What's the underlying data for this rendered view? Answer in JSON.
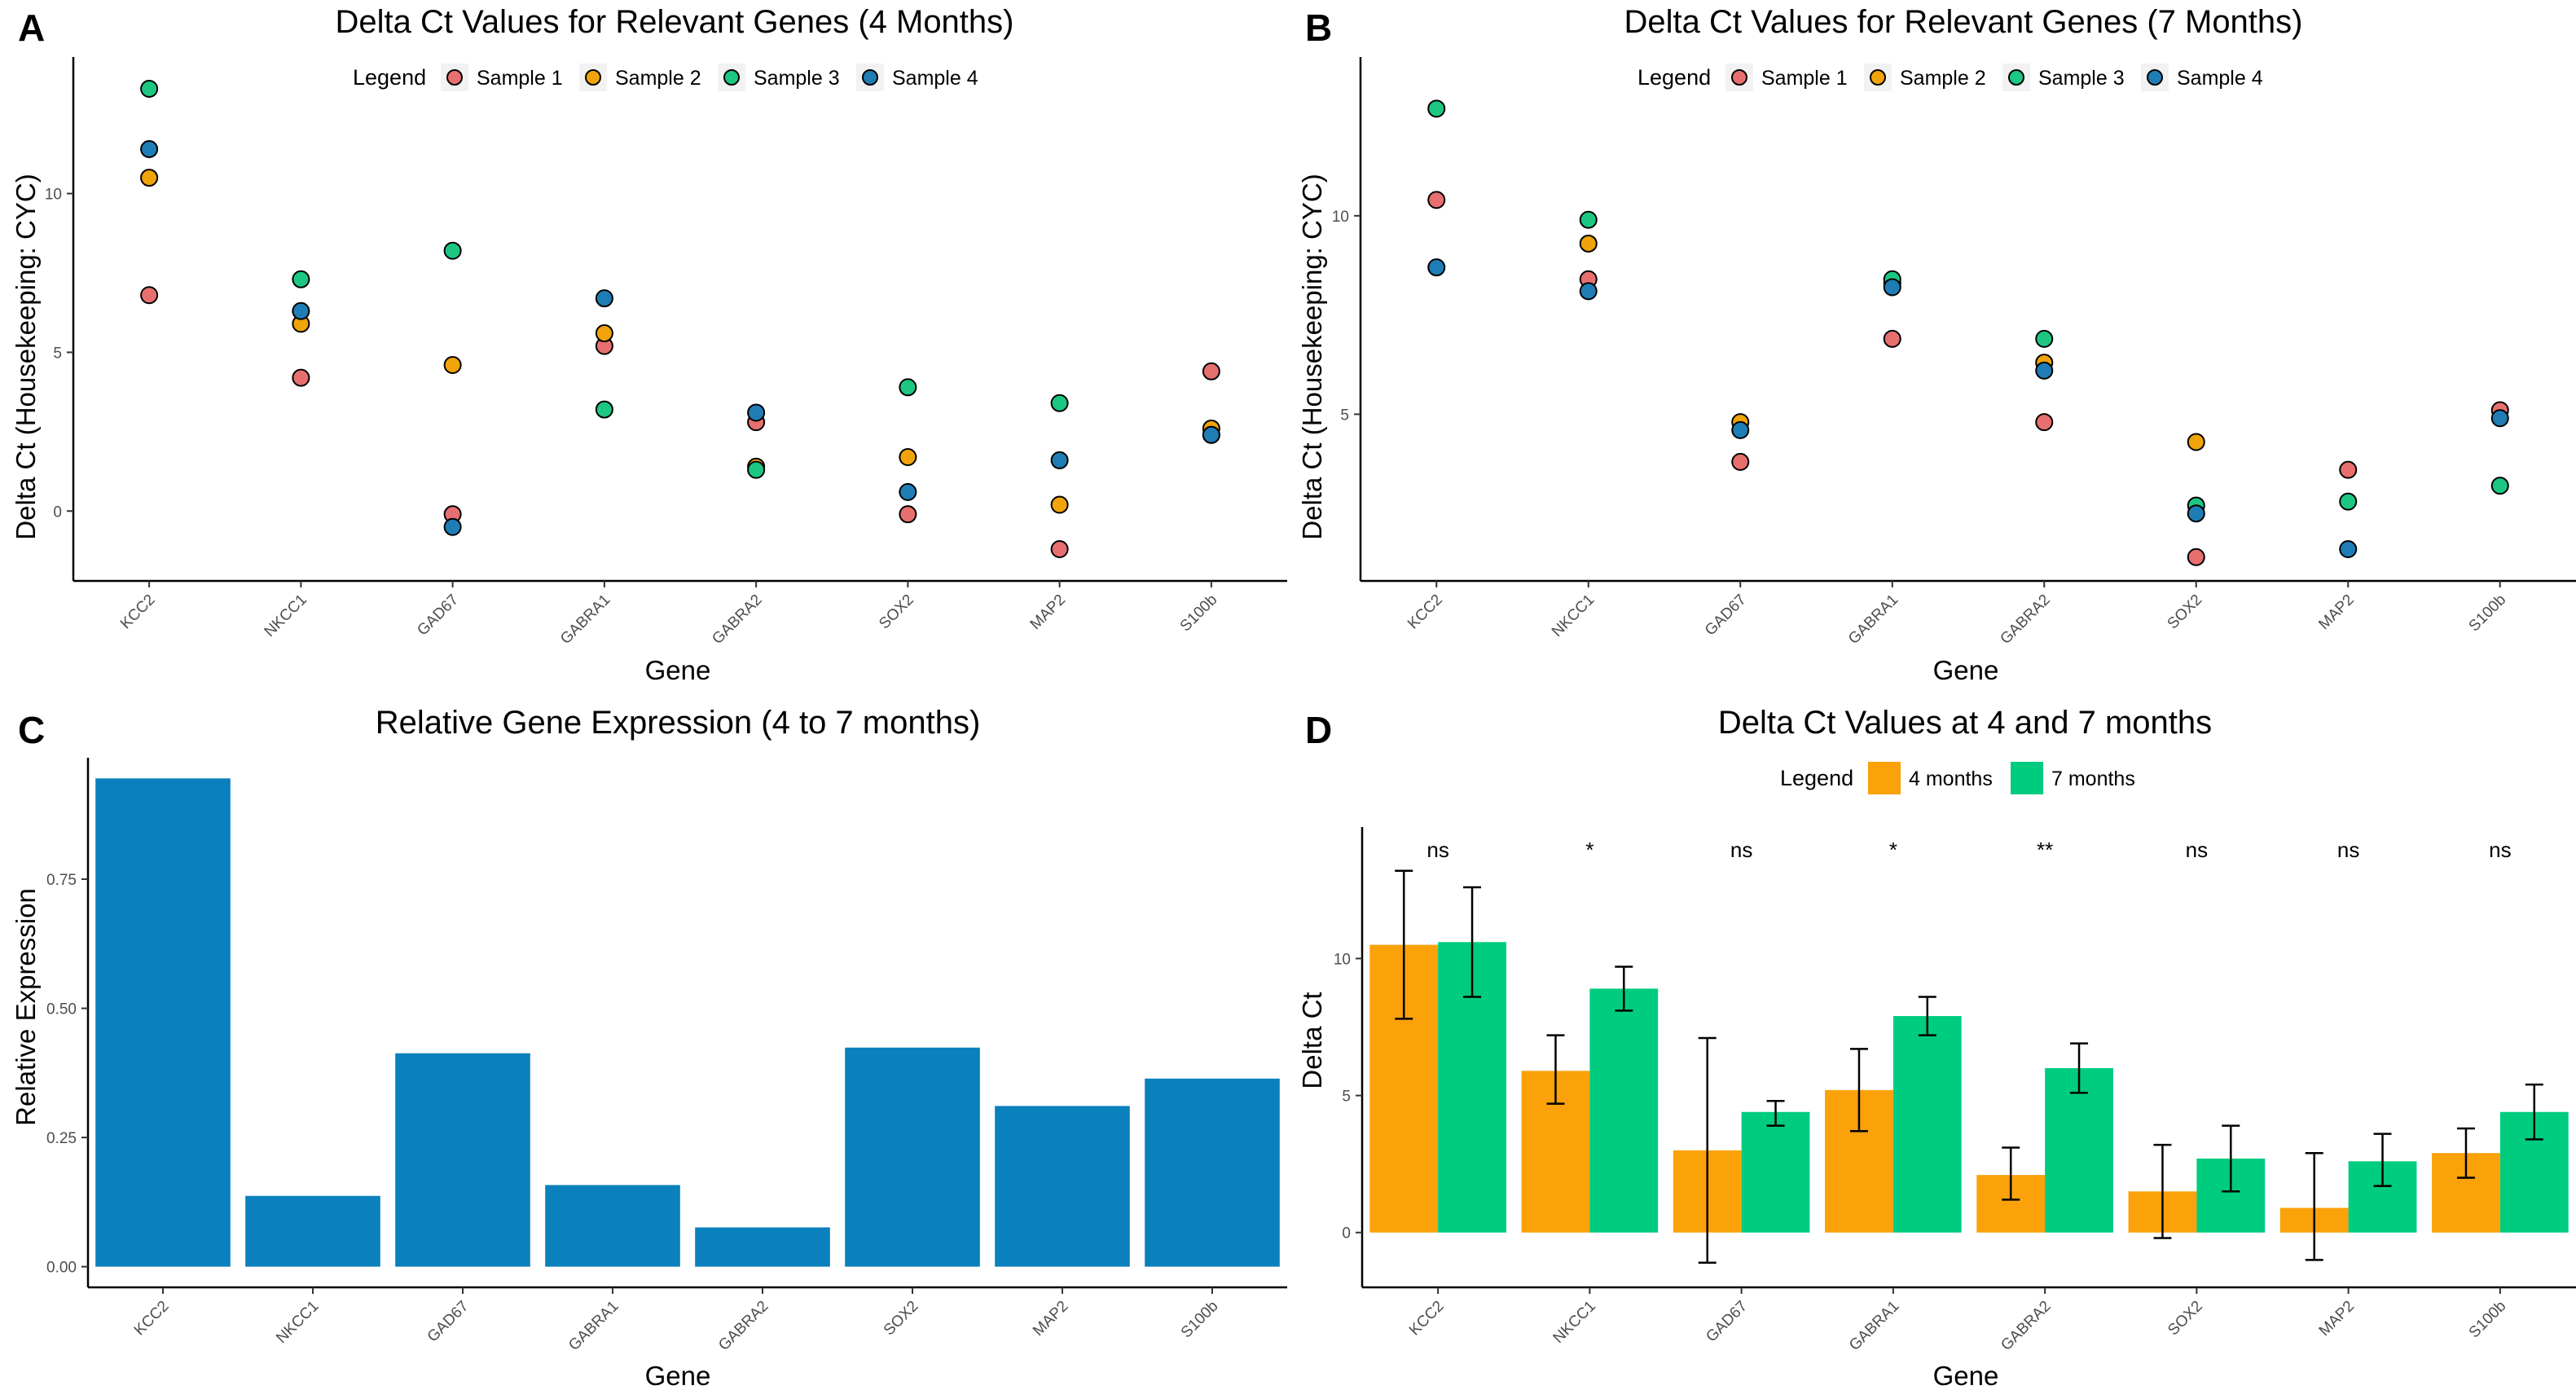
{
  "chart_data": [
    {
      "id": "A",
      "panel_label": "A",
      "type": "scatter",
      "title": "Delta Ct Values for Relevant Genes (4 Months)",
      "xlabel": "Gene",
      "ylabel": "Delta Ct (Housekeeping: CYC)",
      "legend_title": "Legend",
      "legend_position": "top",
      "categories": [
        "KCC2",
        "NKCC1",
        "GAD67",
        "GABRA1",
        "GABRA2",
        "SOX2",
        "MAP2",
        "S100b"
      ],
      "yticks": [
        0,
        5,
        10
      ],
      "ylim": [
        -2.2,
        14.3
      ],
      "grid": false,
      "series": [
        {
          "name": "Sample 1",
          "color": "#E76F6F",
          "values": [
            6.8,
            4.2,
            -0.1,
            5.2,
            2.8,
            -0.1,
            -1.2,
            4.4
          ]
        },
        {
          "name": "Sample 2",
          "color": "#F0A30A",
          "values": [
            10.5,
            5.9,
            4.6,
            5.6,
            1.4,
            1.7,
            0.2,
            2.6
          ]
        },
        {
          "name": "Sample 3",
          "color": "#1DC782",
          "values": [
            13.3,
            7.3,
            8.2,
            3.2,
            1.3,
            3.9,
            3.4,
            2.4
          ]
        },
        {
          "name": "Sample 4",
          "color": "#1F7DB5",
          "values": [
            11.4,
            6.3,
            -0.5,
            6.7,
            3.1,
            0.6,
            1.6,
            2.4
          ]
        }
      ]
    },
    {
      "id": "B",
      "panel_label": "B",
      "type": "scatter",
      "title": "Delta Ct Values for Relevant Genes (7 Months)",
      "xlabel": "Gene",
      "ylabel": "Delta Ct (Housekeeping: CYC)",
      "legend_title": "Legend",
      "legend_position": "top",
      "categories": [
        "KCC2",
        "NKCC1",
        "GAD67",
        "GABRA1",
        "GABRA2",
        "SOX2",
        "MAP2",
        "S100b"
      ],
      "yticks": [
        5,
        10
      ],
      "ylim": [
        0.8,
        14.0
      ],
      "grid": false,
      "series": [
        {
          "name": "Sample 1",
          "color": "#E76F6F",
          "values": [
            10.4,
            8.4,
            3.8,
            6.9,
            4.8,
            1.4,
            3.6,
            5.1
          ]
        },
        {
          "name": "Sample 2",
          "color": "#F0A30A",
          "values": [
            null,
            9.3,
            4.8,
            8.3,
            6.3,
            4.3,
            null,
            null
          ]
        },
        {
          "name": "Sample 3",
          "color": "#1DC782",
          "values": [
            12.7,
            9.9,
            null,
            8.4,
            6.9,
            2.7,
            2.8,
            3.2
          ]
        },
        {
          "name": "Sample 4",
          "color": "#1F7DB5",
          "values": [
            8.7,
            8.1,
            4.6,
            8.2,
            6.1,
            2.5,
            1.6,
            4.9
          ]
        }
      ]
    },
    {
      "id": "C",
      "panel_label": "C",
      "type": "bar",
      "title": "Relative Gene Expression (4 to 7 months)",
      "xlabel": "Gene",
      "ylabel": "Relative Expression",
      "categories": [
        "KCC2",
        "NKCC1",
        "GAD67",
        "GABRA1",
        "GABRA2",
        "SOX2",
        "MAP2",
        "S100b"
      ],
      "values": [
        0.945,
        0.137,
        0.413,
        0.158,
        0.076,
        0.424,
        0.311,
        0.364
      ],
      "bar_color": "#0A80BC",
      "yticks": [
        "0.00",
        "0.25",
        "0.50",
        "0.75"
      ],
      "ylim": [
        -0.04,
        0.985
      ],
      "grid": false
    },
    {
      "id": "D",
      "panel_label": "D",
      "type": "bar",
      "title": "Delta Ct Values at 4 and 7 months",
      "xlabel": "Gene",
      "ylabel": "Delta Ct",
      "legend_title": "Legend",
      "legend_position": "top",
      "categories": [
        "KCC2",
        "NKCC1",
        "GAD67",
        "GABRA1",
        "GABRA2",
        "SOX2",
        "MAP2",
        "S100b"
      ],
      "yticks": [
        0,
        5,
        10
      ],
      "ylim": [
        -2.0,
        14.8
      ],
      "grid": false,
      "series": [
        {
          "name": "4 months",
          "color": "#FBA10A",
          "values": [
            10.5,
            5.9,
            3.0,
            5.2,
            2.1,
            1.5,
            0.9,
            2.9
          ],
          "err_low": [
            7.8,
            4.7,
            -1.1,
            3.7,
            1.2,
            -0.2,
            -1.0,
            2.0
          ],
          "err_high": [
            13.2,
            7.2,
            7.1,
            6.7,
            3.1,
            3.2,
            2.9,
            3.8
          ]
        },
        {
          "name": "7 months",
          "color": "#00CC7F",
          "values": [
            10.6,
            8.9,
            4.4,
            7.9,
            6.0,
            2.7,
            2.6,
            4.4
          ],
          "err_low": [
            8.6,
            8.1,
            3.9,
            7.2,
            5.1,
            1.5,
            1.7,
            3.4
          ],
          "err_high": [
            12.6,
            9.7,
            4.8,
            8.6,
            6.9,
            3.9,
            3.6,
            5.4
          ]
        }
      ],
      "significance": [
        "ns",
        "*",
        "ns",
        "*",
        "**",
        "ns",
        "ns",
        "ns"
      ]
    }
  ]
}
